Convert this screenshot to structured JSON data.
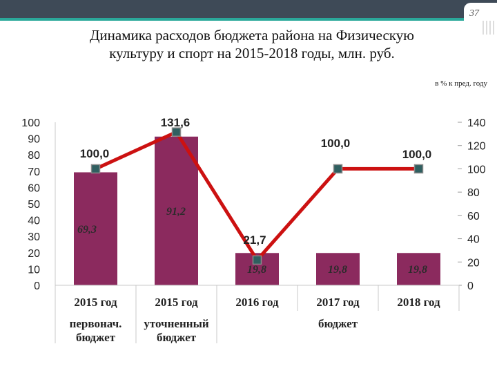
{
  "slide": {
    "page_number": "37",
    "title_line1": "Динамика расходов бюджета района на Физическую",
    "title_line2": "культуру  и спорт на  2015-2018 годы, млн. руб.",
    "note": "в % к пред. году"
  },
  "colors": {
    "bar": "#8b2a5e",
    "line": "#cc1111",
    "marker": "#2f5f60",
    "bar_label": "#2b2b2b"
  },
  "chart_data": {
    "type": "bar",
    "title": "",
    "categories": [
      "2015 год",
      "2015 год",
      "2016 год",
      "2017 год",
      "2018 год"
    ],
    "subcategories": [
      "первонач. бюджет",
      "уточненный бюджет",
      "бюджет",
      "бюджет",
      "бюджет"
    ],
    "group_labels": [
      {
        "text_line1": "первонач.",
        "text_line2": "бюджет"
      },
      {
        "text_line1": "уточненный",
        "text_line2": "бюджет"
      },
      {
        "text_line1": "бюджет",
        "text_line2": ""
      }
    ],
    "series": [
      {
        "type": "bar",
        "axis": "left",
        "values": [
          69.3,
          91.2,
          19.8,
          19.8,
          19.8
        ],
        "labels": [
          "69,3",
          "91,2",
          "19,8",
          "19,8",
          "19,8"
        ]
      },
      {
        "type": "line",
        "axis": "right",
        "values": [
          100.0,
          131.6,
          21.7,
          100.0,
          100.0
        ],
        "labels": [
          "100,0",
          "131,6",
          "21,7",
          "100,0",
          "100,0"
        ]
      }
    ],
    "ylim": [
      0,
      100
    ],
    "y_ticks": [
      "0",
      "10",
      "20",
      "30",
      "40",
      "50",
      "60",
      "70",
      "80",
      "90",
      "100"
    ],
    "y2lim": [
      0,
      140
    ],
    "y2_ticks": [
      "0",
      "20",
      "40",
      "60",
      "80",
      "100",
      "120",
      "140"
    ],
    "grid": false,
    "legend": "none"
  }
}
